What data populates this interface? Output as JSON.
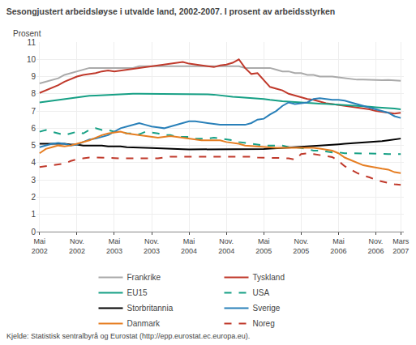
{
  "chart_data": {
    "type": "line",
    "title": "Sesongjustert arbeidsløyse i utvalde land, 2002-2007. I prosent av arbeidsstyrken",
    "y_label": "Prosent",
    "source": "Kjelde: Statistisk sentralbyrå og Eurostat (http://epp.eurostat.ec.europa.eu).",
    "categories": [
      "Mai\n2002",
      null,
      null,
      null,
      null,
      null,
      "Nov.\n2002",
      null,
      null,
      null,
      null,
      null,
      "Mai\n2003",
      null,
      null,
      null,
      null,
      null,
      "Nov.\n2003",
      null,
      null,
      null,
      null,
      null,
      "Mai\n2004",
      null,
      null,
      null,
      null,
      null,
      "Nov.\n2004",
      null,
      null,
      null,
      null,
      null,
      "Mai\n2005",
      null,
      null,
      null,
      null,
      null,
      "Nov.\n2005",
      null,
      null,
      null,
      null,
      null,
      "Mai\n2006",
      null,
      null,
      null,
      null,
      null,
      "Nov.\n2006",
      null,
      null,
      null,
      "Mars\n2007"
    ],
    "ylim": [
      0,
      11
    ],
    "yticks": [
      0,
      1,
      2,
      3,
      4,
      5,
      6,
      7,
      8,
      9,
      10,
      11
    ],
    "grid": true,
    "legend": "bottom",
    "series": [
      {
        "name": "Frankrike",
        "color": "#aaaaaa",
        "line_style": "solid",
        "values": [
          8.6,
          8.7,
          8.8,
          8.9,
          9.1,
          9.2,
          9.3,
          9.4,
          9.5,
          9.5,
          9.5,
          9.5,
          9.5,
          9.5,
          9.5,
          9.5,
          9.6,
          9.6,
          9.6,
          9.6,
          9.6,
          9.6,
          9.6,
          9.6,
          9.6,
          9.6,
          9.6,
          9.6,
          9.6,
          9.6,
          9.6,
          9.6,
          9.6,
          9.5,
          9.5,
          9.5,
          9.5,
          9.5,
          9.4,
          9.3,
          9.3,
          9.2,
          9.2,
          9.1,
          9.1,
          9.0,
          9.0,
          9.0,
          8.95,
          8.9,
          8.85,
          8.82,
          8.82,
          8.8,
          8.78,
          8.79,
          8.8,
          8.79,
          8.75
        ]
      },
      {
        "name": "Tyskland",
        "color": "#c0392b",
        "line_style": "solid",
        "values": [
          8.05,
          8.2,
          8.35,
          8.5,
          8.7,
          8.85,
          9.0,
          9.1,
          9.15,
          9.2,
          9.3,
          9.35,
          9.3,
          9.35,
          9.4,
          9.45,
          9.5,
          9.55,
          9.6,
          9.65,
          9.7,
          9.75,
          9.8,
          9.85,
          9.75,
          9.7,
          9.65,
          9.6,
          9.55,
          9.65,
          9.7,
          9.8,
          10.0,
          9.5,
          9.15,
          9.2,
          8.8,
          8.4,
          8.3,
          8.2,
          8.0,
          7.9,
          7.8,
          7.7,
          7.65,
          7.55,
          7.45,
          7.4,
          7.35,
          7.3,
          7.25,
          7.2,
          7.15,
          7.1,
          7.0,
          6.95,
          6.9,
          6.85,
          6.9
        ]
      },
      {
        "name": "EU15",
        "color": "#16a085",
        "line_style": "solid",
        "values": [
          7.5,
          7.55,
          7.6,
          7.65,
          7.7,
          7.75,
          7.8,
          7.85,
          7.88,
          7.9,
          7.92,
          7.95,
          7.97,
          7.98,
          8.0,
          8.0,
          8.0,
          8.0,
          8.0,
          8.0,
          8.0,
          8.0,
          8.0,
          8.0,
          8.0,
          8.0,
          7.98,
          7.97,
          7.95,
          7.9,
          7.87,
          7.83,
          7.8,
          7.78,
          7.75,
          7.73,
          7.7,
          7.65,
          7.6,
          7.57,
          7.55,
          7.52,
          7.5,
          7.48,
          7.45,
          7.43,
          7.42,
          7.4,
          7.38,
          7.35,
          7.32,
          7.3,
          7.27,
          7.25,
          7.22,
          7.2,
          7.18,
          7.15,
          7.1
        ]
      },
      {
        "name": "USA",
        "color": "#16a085",
        "line_style": "dashed",
        "values": [
          5.8,
          5.9,
          5.8,
          5.7,
          5.6,
          5.7,
          5.8,
          5.7,
          5.9,
          6.0,
          5.9,
          5.9,
          5.8,
          5.8,
          5.7,
          5.7,
          5.65,
          5.8,
          5.75,
          5.7,
          5.6,
          5.6,
          5.5,
          5.5,
          5.5,
          5.4,
          5.4,
          5.4,
          5.45,
          5.4,
          5.35,
          5.3,
          5.2,
          5.15,
          5.1,
          5.05,
          5.0,
          5.0,
          5.0,
          5.0,
          4.9,
          4.9,
          4.85,
          4.8,
          4.7,
          4.7,
          4.65,
          4.6,
          4.6,
          4.55,
          4.55,
          4.55,
          4.53,
          4.52,
          4.52,
          4.52,
          4.5,
          4.5,
          4.5
        ]
      },
      {
        "name": "Storbritannia",
        "color": "#000000",
        "line_style": "solid",
        "values": [
          5.1,
          5.1,
          5.1,
          5.1,
          5.1,
          5.05,
          5.05,
          5.0,
          5.0,
          5.0,
          5.0,
          4.95,
          4.95,
          4.95,
          4.9,
          4.9,
          4.9,
          4.87,
          4.85,
          4.83,
          4.82,
          4.8,
          4.8,
          4.78,
          4.77,
          4.77,
          4.77,
          4.77,
          4.77,
          4.77,
          4.77,
          4.77,
          4.77,
          4.77,
          4.77,
          4.78,
          4.8,
          4.82,
          4.85,
          4.87,
          4.88,
          4.9,
          4.92,
          4.95,
          4.97,
          5.0,
          5.02,
          5.05,
          5.07,
          5.1,
          5.12,
          5.15,
          5.17,
          5.2,
          5.22,
          5.25,
          5.3,
          5.35,
          5.4
        ]
      },
      {
        "name": "Sverige",
        "color": "#2980b9",
        "line_style": "solid",
        "values": [
          4.9,
          5.0,
          5.1,
          5.15,
          5.1,
          5.0,
          5.05,
          5.2,
          5.35,
          5.4,
          5.5,
          5.6,
          5.8,
          6.0,
          6.1,
          6.2,
          6.3,
          6.2,
          6.1,
          6.05,
          6.0,
          6.1,
          6.2,
          6.3,
          6.4,
          6.4,
          6.35,
          6.3,
          6.25,
          6.2,
          6.2,
          6.2,
          6.2,
          6.2,
          6.3,
          6.5,
          6.55,
          6.8,
          7.0,
          7.3,
          7.5,
          7.4,
          7.45,
          7.5,
          7.7,
          7.75,
          7.7,
          7.65,
          7.65,
          7.6,
          7.5,
          7.4,
          7.3,
          7.2,
          7.1,
          7.0,
          6.9,
          6.7,
          6.6
        ]
      },
      {
        "name": "Danmark",
        "color": "#e67e22",
        "line_style": "solid",
        "values": [
          4.55,
          4.8,
          4.9,
          5.0,
          4.95,
          5.0,
          5.1,
          5.2,
          5.3,
          5.45,
          5.6,
          5.7,
          5.75,
          5.8,
          5.7,
          5.65,
          5.6,
          5.55,
          5.5,
          5.45,
          5.5,
          5.55,
          5.5,
          5.45,
          5.4,
          5.35,
          5.3,
          5.3,
          5.3,
          5.3,
          5.2,
          5.15,
          5.1,
          5.0,
          4.97,
          4.93,
          4.9,
          4.87,
          4.87,
          4.87,
          4.87,
          4.88,
          4.9,
          4.9,
          4.87,
          4.82,
          4.75,
          4.7,
          4.55,
          4.3,
          4.15,
          4.0,
          3.85,
          3.78,
          3.7,
          3.65,
          3.6,
          3.45,
          3.4
        ]
      },
      {
        "name": "Noreg",
        "color": "#c0392b",
        "line_style": "dashed",
        "values": [
          3.75,
          3.8,
          3.85,
          3.9,
          3.95,
          4.1,
          4.2,
          4.25,
          4.3,
          4.3,
          4.3,
          4.28,
          4.27,
          4.25,
          4.25,
          4.25,
          4.25,
          4.25,
          4.25,
          4.25,
          4.3,
          4.35,
          4.35,
          4.35,
          4.35,
          4.35,
          4.35,
          4.35,
          4.35,
          4.35,
          4.35,
          4.35,
          4.35,
          4.35,
          4.35,
          4.3,
          4.3,
          4.28,
          4.28,
          4.27,
          4.25,
          4.18,
          4.5,
          4.55,
          4.5,
          4.45,
          4.4,
          4.33,
          4.1,
          3.8,
          3.6,
          3.4,
          3.25,
          3.15,
          3.0,
          2.9,
          2.82,
          2.75,
          2.72
        ]
      }
    ]
  }
}
